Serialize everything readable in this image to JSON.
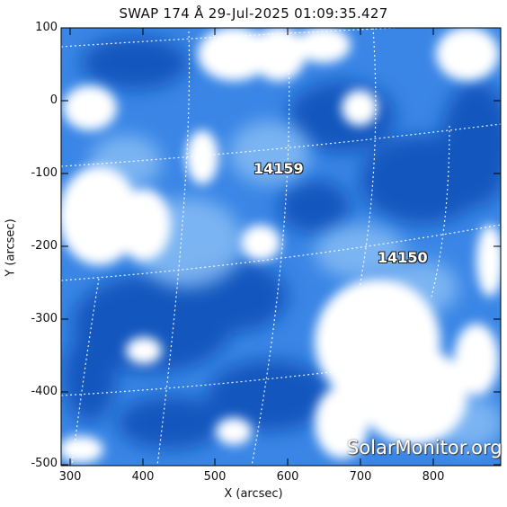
{
  "title": "SWAP 174 Å 29-Jul-2025 01:09:35.427",
  "x_axis": {
    "label": "X (arcsec)",
    "ticks": [
      "300",
      "400",
      "500",
      "600",
      "700",
      "800"
    ]
  },
  "y_axis": {
    "label": "Y (arcsec)",
    "ticks": [
      "100",
      "0",
      "-100",
      "-200",
      "-300",
      "-400",
      "-500"
    ]
  },
  "active_regions": [
    {
      "id": "14159"
    },
    {
      "id": "14150"
    }
  ],
  "watermark": "SolarMonitor.org",
  "colors": {
    "deep_blue": "#0a3fa8",
    "mid_blue": "#2f7fe0",
    "light_blue": "#8cc0f5",
    "bright": "#ffffff"
  }
}
